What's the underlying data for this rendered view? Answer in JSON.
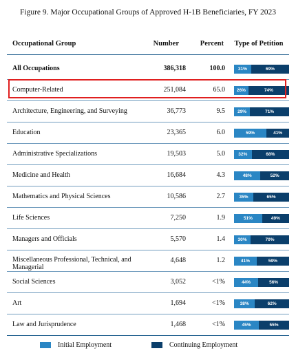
{
  "title": "Figure 9. Major Occupational Groups of Approved H-1B Beneficiaries, FY 2023",
  "headers": {
    "group": "Occupational Group",
    "number": "Number",
    "percent": "Percent",
    "type": "Type of Petition"
  },
  "legend": {
    "initial": "Initial Employment",
    "continuing": "Continuing Employment"
  },
  "colors": {
    "initial": "#2a86c4",
    "continuing": "#0b3f6b",
    "highlight": "#e01f1f"
  },
  "chart_data": {
    "type": "table",
    "title": "Figure 9. Major Occupational Groups of Approved H-1B Beneficiaries, FY 2023",
    "highlighted_row": "Computer-Related",
    "series": [
      {
        "name": "Initial Employment"
      },
      {
        "name": "Continuing Employment"
      }
    ],
    "rows": [
      {
        "group": "All Occupations",
        "number": "386,318",
        "percent": "100.0",
        "initial": 31,
        "continuing": 69,
        "initial_label": "31%",
        "continuing_label": "69%",
        "bold": true
      },
      {
        "group": "Computer-Related",
        "number": "251,084",
        "percent": "65.0",
        "initial": 26,
        "continuing": 74,
        "initial_label": "26%",
        "continuing_label": "74%"
      },
      {
        "group": "Architecture, Engineering, and Surveying",
        "number": "36,773",
        "percent": "9.5",
        "initial": 29,
        "continuing": 71,
        "initial_label": "29%",
        "continuing_label": "71%"
      },
      {
        "group": "Education",
        "number": "23,365",
        "percent": "6.0",
        "initial": 59,
        "continuing": 41,
        "initial_label": "59%",
        "continuing_label": "41%"
      },
      {
        "group": "Administrative Specializations",
        "number": "19,503",
        "percent": "5.0",
        "initial": 32,
        "continuing": 68,
        "initial_label": "32%",
        "continuing_label": "68%"
      },
      {
        "group": "Medicine and Health",
        "number": "16,684",
        "percent": "4.3",
        "initial": 48,
        "continuing": 52,
        "initial_label": "48%",
        "continuing_label": "52%"
      },
      {
        "group": "Mathematics and Physical Sciences",
        "number": "10,586",
        "percent": "2.7",
        "initial": 35,
        "continuing": 65,
        "initial_label": "35%",
        "continuing_label": "65%"
      },
      {
        "group": "Life Sciences",
        "number": "7,250",
        "percent": "1.9",
        "initial": 51,
        "continuing": 49,
        "initial_label": "51%",
        "continuing_label": "49%"
      },
      {
        "group": "Managers and Officials",
        "number": "5,570",
        "percent": "1.4",
        "initial": 30,
        "continuing": 70,
        "initial_label": "30%",
        "continuing_label": "70%"
      },
      {
        "group": "Miscellaneous Professional, Technical, and Managerial",
        "number": "4,648",
        "percent": "1.2",
        "initial": 41,
        "continuing": 59,
        "initial_label": "41%",
        "continuing_label": "59%"
      },
      {
        "group": "Social Sciences",
        "number": "3,052",
        "percent": "<1%",
        "initial": 44,
        "continuing": 56,
        "initial_label": "44%",
        "continuing_label": "56%"
      },
      {
        "group": "Art",
        "number": "1,694",
        "percent": "<1%",
        "initial": 38,
        "continuing": 62,
        "initial_label": "38%",
        "continuing_label": "62%"
      },
      {
        "group": "Law and Jurisprudence",
        "number": "1,468",
        "percent": "<1%",
        "initial": 45,
        "continuing": 55,
        "initial_label": "45%",
        "continuing_label": "55%"
      }
    ]
  }
}
